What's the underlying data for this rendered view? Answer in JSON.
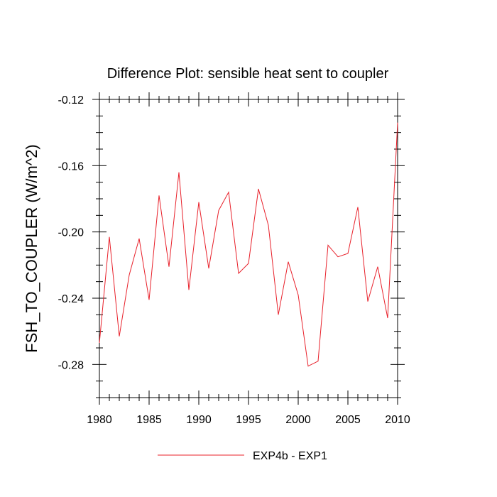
{
  "chart_data": {
    "type": "line",
    "title": "Difference Plot: sensible heat sent to coupler",
    "xlabel": "",
    "ylabel": "FSH_TO_COUPLER  (W/m^2)",
    "xlim": [
      1980,
      2010
    ],
    "ylim": [
      -0.3,
      -0.12
    ],
    "xticks": [
      1980,
      1985,
      1990,
      1995,
      2000,
      2005,
      2010
    ],
    "xtick_labels": [
      "1980",
      "1985",
      "1990",
      "1995",
      "2000",
      "2005",
      "2010"
    ],
    "yticks": [
      -0.28,
      -0.24,
      -0.2,
      -0.16,
      -0.12
    ],
    "ytick_labels": [
      "-0.28",
      "-0.24",
      "-0.20",
      "-0.16",
      "-0.12"
    ],
    "grid": false,
    "legend_position": "bottom-center",
    "series": [
      {
        "name": "EXP4b - EXP1",
        "color": "#e8202a",
        "x": [
          1980,
          1981,
          1982,
          1983,
          1984,
          1985,
          1986,
          1987,
          1988,
          1989,
          1990,
          1991,
          1992,
          1993,
          1994,
          1995,
          1996,
          1997,
          1998,
          1999,
          2000,
          2001,
          2002,
          2003,
          2004,
          2005,
          2006,
          2007,
          2008,
          2009,
          2010
        ],
        "y": [
          -0.267,
          -0.203,
          -0.263,
          -0.226,
          -0.204,
          -0.241,
          -0.178,
          -0.221,
          -0.164,
          -0.235,
          -0.182,
          -0.222,
          -0.187,
          -0.176,
          -0.225,
          -0.219,
          -0.174,
          -0.196,
          -0.25,
          -0.218,
          -0.238,
          -0.281,
          -0.278,
          -0.208,
          -0.215,
          -0.213,
          -0.185,
          -0.242,
          -0.221,
          -0.252,
          -0.134
        ]
      }
    ]
  }
}
